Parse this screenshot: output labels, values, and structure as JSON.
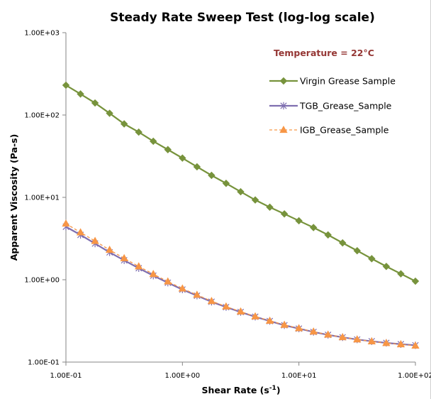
{
  "chart_data": {
    "type": "line",
    "title": "Steady Rate Sweep Test (log-log scale)",
    "xlabel": "Shear Rate (s⁻¹)",
    "ylabel": "Apparent Viscosity (Pa-s)",
    "xscale": "log",
    "yscale": "log",
    "xlim": [
      0.1,
      100
    ],
    "ylim": [
      0.1,
      1000
    ],
    "x_ticks": [
      "1.00E-01",
      "1.00E+00",
      "1.00E+01",
      "1.00E+02"
    ],
    "y_ticks": [
      "1.00E-01",
      "1.00E+00",
      "1.00E+01",
      "1.00E+02",
      "1.00E+03"
    ],
    "grid": false,
    "legend_position": "top-right",
    "annotation": {
      "text": "Temperature = 22°C",
      "color": "#953735"
    },
    "x": [
      0.1,
      0.1334,
      0.1778,
      0.2371,
      0.3162,
      0.4217,
      0.5623,
      0.7499,
      1.0,
      1.334,
      1.778,
      2.371,
      3.162,
      4.217,
      5.623,
      7.499,
      10.0,
      13.34,
      17.78,
      23.71,
      31.62,
      42.17,
      56.23,
      74.99,
      100.0
    ],
    "series": [
      {
        "name": "Virgin Grease Sample",
        "color": "#77933c",
        "marker": "diamond",
        "values": [
          230,
          180,
          140,
          105,
          78,
          62,
          48,
          38,
          30,
          23.5,
          18.5,
          14.8,
          11.7,
          9.3,
          7.6,
          6.3,
          5.2,
          4.3,
          3.5,
          2.8,
          2.25,
          1.8,
          1.45,
          1.18,
          0.96
        ]
      },
      {
        "name": "TGB_Grease_Sample",
        "color": "#7f6fb0",
        "marker": "star",
        "values": [
          4.4,
          3.5,
          2.75,
          2.15,
          1.72,
          1.38,
          1.12,
          0.92,
          0.76,
          0.64,
          0.54,
          0.465,
          0.405,
          0.355,
          0.315,
          0.28,
          0.255,
          0.232,
          0.214,
          0.2,
          0.188,
          0.179,
          0.171,
          0.165,
          0.16
        ]
      },
      {
        "name": "IGB_Grease_Sample",
        "color": "#f79646",
        "marker": "triangle",
        "values": [
          4.8,
          3.75,
          2.95,
          2.3,
          1.82,
          1.45,
          1.17,
          0.95,
          0.78,
          0.655,
          0.55,
          0.472,
          0.41,
          0.358,
          0.317,
          0.283,
          0.257,
          0.234,
          0.215,
          0.2,
          0.188,
          0.178,
          0.17,
          0.164,
          0.158
        ]
      }
    ]
  }
}
